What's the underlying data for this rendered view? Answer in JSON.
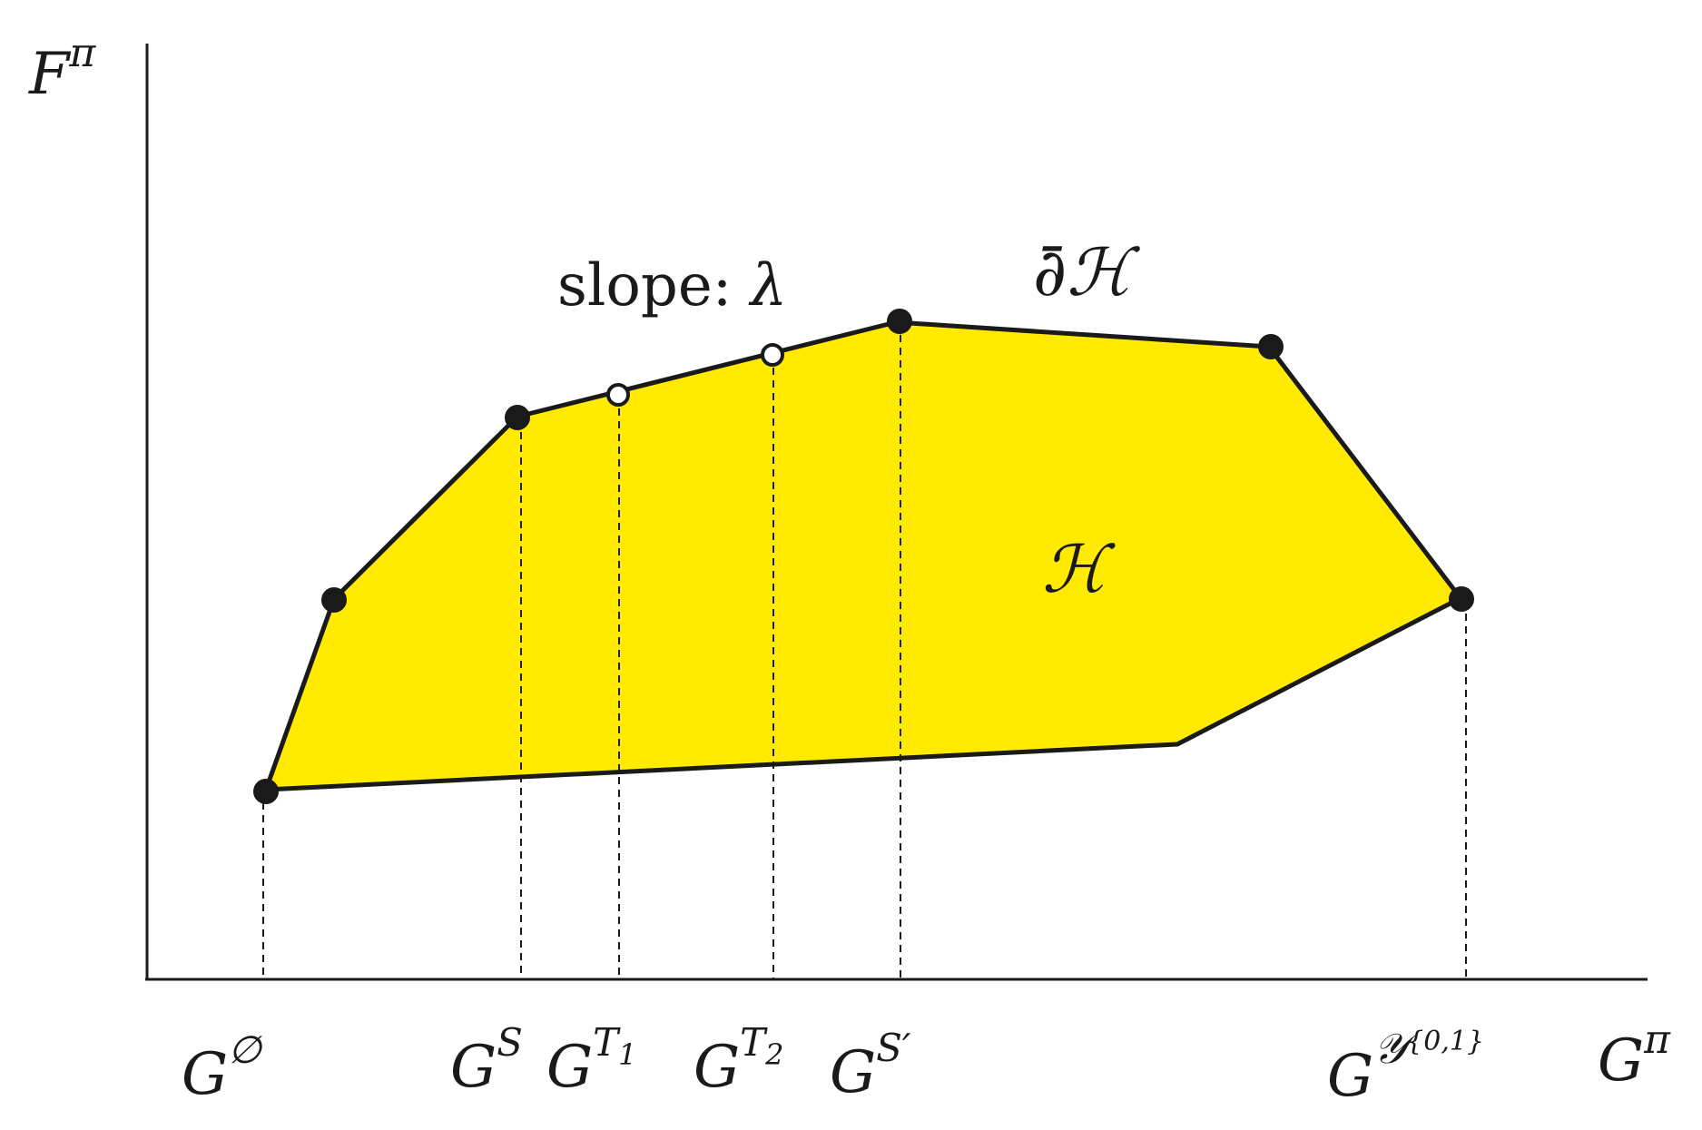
{
  "diagram": {
    "colors": {
      "region_fill": "#ffea00",
      "outline": "#1a1a1a",
      "open_point_fill": "#ffffff"
    },
    "axes": {
      "y_label_base": "F",
      "y_label_sup": "π",
      "x_label_base": "G",
      "x_label_sup": "π"
    },
    "region_label": "ℋ",
    "boundary_label": "∂̄ℋ",
    "slope_label": {
      "text": "slope: ",
      "symbol": "λ"
    },
    "x_ticks": [
      {
        "base": "G",
        "sup": "∅",
        "sup_style": "upright"
      },
      {
        "base": "G",
        "sup": "S",
        "sup_style": "italic"
      },
      {
        "base": "G",
        "sup": "T",
        "sub": "1",
        "sup_style": "italic"
      },
      {
        "base": "G",
        "sup": "T",
        "sub": "2",
        "sup_style": "italic"
      },
      {
        "base": "G",
        "sup": "S′",
        "sup_style": "italic"
      },
      {
        "base": "G",
        "sup": "𝒴",
        "sup2": "{0,1}",
        "sup_style": "italic"
      }
    ],
    "points": {
      "filled": [
        "G∅",
        "GS",
        "GS′",
        "G𝒴{0,1}"
      ],
      "open": [
        "GT1",
        "GT2"
      ]
    }
  }
}
